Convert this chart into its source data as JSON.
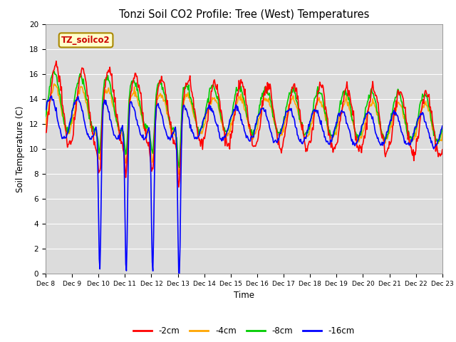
{
  "title": "Tonzi Soil CO2 Profile: Tree (West) Temperatures",
  "xlabel": "Time",
  "ylabel": "Soil Temperature (C)",
  "ylim": [
    0,
    20
  ],
  "background_color": "#dcdcdc",
  "legend_label": "TZ_soilco2",
  "legend_box_color": "#ffffcc",
  "legend_box_edge": "#aa8800",
  "series_colors": [
    "#ff0000",
    "#ffa500",
    "#00cc00",
    "#0000ff"
  ],
  "series_labels": [
    "-2cm",
    "-4cm",
    "-8cm",
    "-16cm"
  ],
  "tick_labels": [
    "Dec 8",
    "Dec 9",
    "Dec 10",
    "Dec 11",
    "Dec 12",
    "Dec 13",
    "Dec 14",
    "Dec 15",
    "Dec 16",
    "Dec 17",
    "Dec 18",
    "Dec 19",
    "Dec 20",
    "Dec 21",
    "Dec 22",
    "Dec 23"
  ],
  "grid_color": "#ffffff",
  "line_width": 1.2
}
